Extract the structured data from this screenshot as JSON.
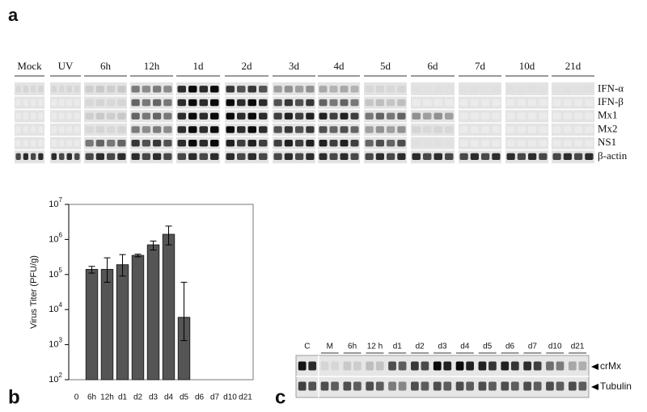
{
  "panel_labels": [
    "a",
    "b",
    "c"
  ],
  "gel_a": {
    "lanes": [
      "Mock",
      "UV",
      "6h",
      "12h",
      "1d",
      "2d",
      "3d",
      "4d",
      "5d",
      "6d",
      "7d",
      "10d",
      "21d"
    ],
    "rows": [
      "IFN-α",
      "IFN-β",
      "Mx1",
      "Mx2",
      "NS1",
      "β-actin"
    ]
  },
  "gel_c": {
    "lanes": [
      "C",
      "M",
      "6h",
      "12 h",
      "d1",
      "d2",
      "d3",
      "d4",
      "d5",
      "d6",
      "d7",
      "d10",
      "d21"
    ],
    "rows": [
      "crMx",
      "Tubulin"
    ]
  },
  "chart_data": {
    "type": "bar",
    "ylabel": "Virus Titer (PFU/g)",
    "categories": [
      "0",
      "6h",
      "12h",
      "d1",
      "d2",
      "d3",
      "d4",
      "d5",
      "d6",
      "d7",
      "d10",
      "d21"
    ],
    "values": [
      null,
      140000,
      140000,
      190000,
      350000,
      700000,
      1400000,
      6000,
      null,
      null,
      null,
      null
    ],
    "errors_low": [
      null,
      30000,
      80000,
      100000,
      30000,
      200000,
      700000,
      4700,
      null,
      null,
      null,
      null
    ],
    "errors_high": [
      null,
      30000,
      160000,
      180000,
      30000,
      200000,
      1000000,
      54000,
      null,
      null,
      null,
      null
    ],
    "color": "#555555",
    "log_scale": true,
    "ylim": [
      100,
      10000000
    ],
    "yticks": [
      {
        "value": 100,
        "label": "10",
        "exponent": "2"
      },
      {
        "value": 1000,
        "label": "10",
        "exponent": "3"
      },
      {
        "value": 10000,
        "label": "10",
        "exponent": "4"
      },
      {
        "value": 100000,
        "label": "10",
        "exponent": "5"
      },
      {
        "value": 1000000,
        "label": "10",
        "exponent": "6"
      },
      {
        "value": 10000000,
        "label": "10",
        "exponent": "7"
      }
    ]
  }
}
